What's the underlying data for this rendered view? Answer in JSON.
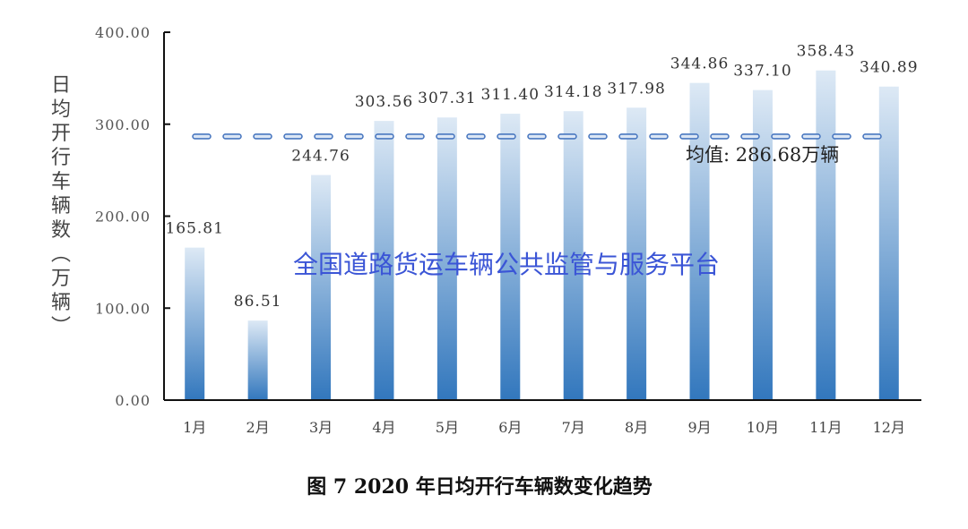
{
  "chart_data": {
    "type": "bar",
    "title": "图 7  2020 年日均开行车辆数变化趋势",
    "ylabel": "日均开行车辆数（万辆）",
    "xlabel": "",
    "categories": [
      "1月",
      "2月",
      "3月",
      "4月",
      "5月",
      "6月",
      "7月",
      "8月",
      "9月",
      "10月",
      "11月",
      "12月"
    ],
    "values": [
      165.81,
      86.51,
      244.76,
      303.56,
      307.31,
      311.4,
      314.18,
      317.98,
      344.86,
      337.1,
      358.43,
      340.89
    ],
    "data_labels": [
      "165.81",
      "86.51",
      "244.76",
      "303.56",
      "307.31",
      "311.40",
      "314.18",
      "317.98",
      "344.86",
      "337.10",
      "358.43",
      "340.89"
    ],
    "ylim": [
      0,
      400
    ],
    "yticks": [
      "0.00",
      "100.00",
      "200.00",
      "300.00",
      "400.00"
    ],
    "grid": false,
    "mean_line": {
      "value": 286.68,
      "label": "均值: 286.68万辆",
      "style": "dashed",
      "color": "#4a78c0"
    },
    "bar_gradient": {
      "top": "#dde9f5",
      "bottom": "#3277bd"
    },
    "watermark": "全国道路货运车辆公共监管与服务平台",
    "watermark_color": "#3b55d6"
  }
}
